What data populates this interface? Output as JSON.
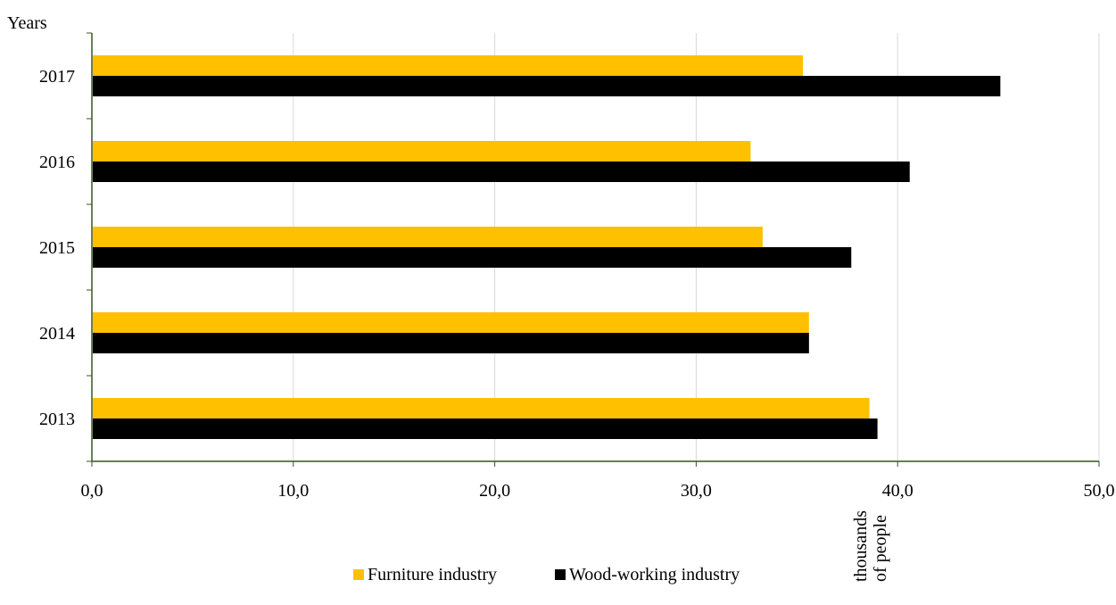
{
  "chart_data": {
    "type": "bar",
    "orientation": "horizontal",
    "categories": [
      "2013",
      "2014",
      "2015",
      "2016",
      "2017"
    ],
    "series": [
      {
        "name": "Furniture industry",
        "color": "#FFC000",
        "values": [
          38.6,
          35.6,
          33.3,
          32.7,
          35.3
        ]
      },
      {
        "name": "Wood-working industry",
        "color": "#000000",
        "values": [
          39.0,
          35.6,
          37.7,
          40.6,
          45.1
        ]
      }
    ],
    "ylabel": "Years",
    "xlabel": [
      "thousands",
      "of people"
    ],
    "xlim": [
      0,
      50
    ],
    "xticks": [
      "0,0",
      "10,0",
      "20,0",
      "30,0",
      "40,0",
      "50,0"
    ],
    "grid": "vertical",
    "legend": "bottom",
    "axis_color": "#375623",
    "grid_color": "#D9D9D9"
  }
}
